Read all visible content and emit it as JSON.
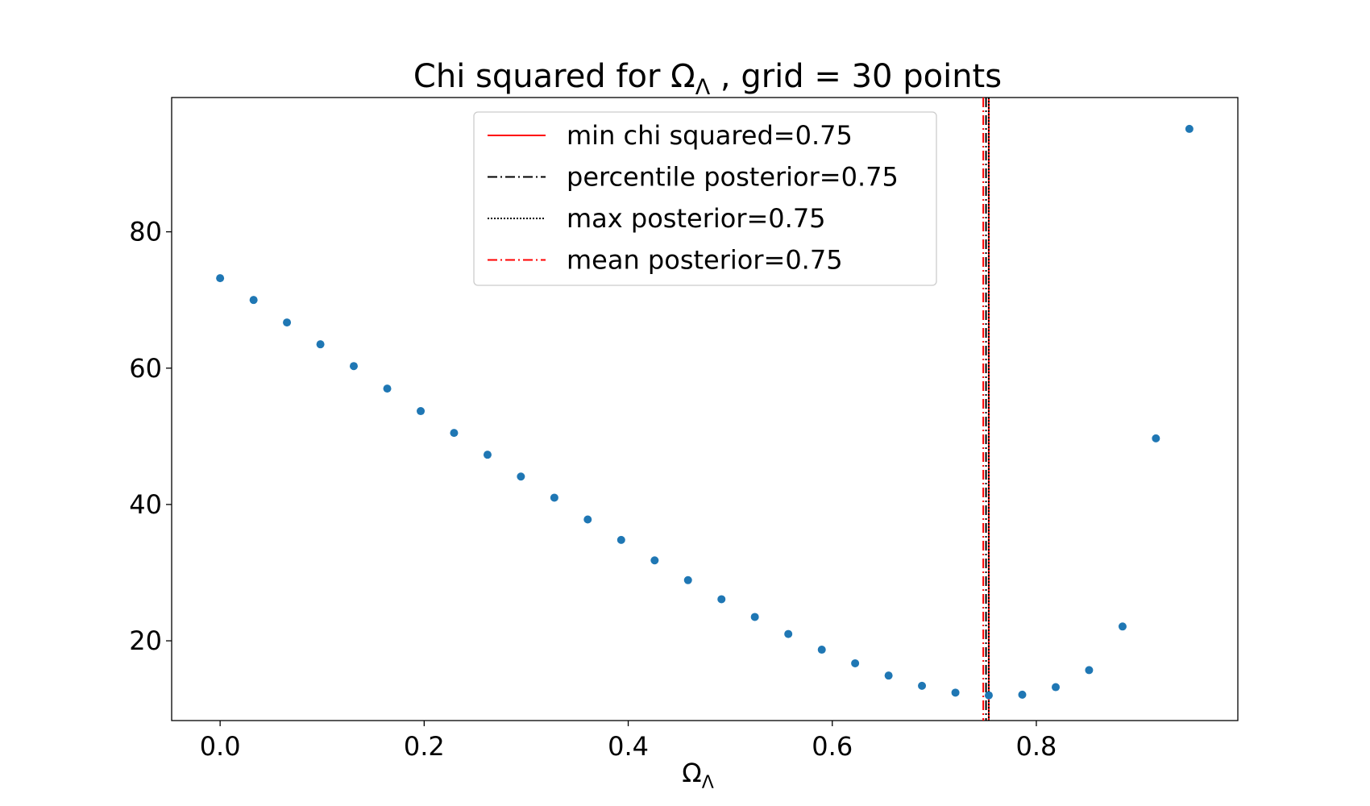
{
  "chart_data": {
    "type": "scatter",
    "title": "Chi squared for Ω",
    "title_subscript": "Λ",
    "title_suffix": " , grid = 30 points",
    "xlabel": "Ω",
    "xlabel_subscript": "Λ",
    "ylabel": "",
    "xlim": [
      -0.0475,
      0.9975
    ],
    "ylim": [
      8.3,
      99.7
    ],
    "xticks": [
      0.0,
      0.2,
      0.4,
      0.6,
      0.8
    ],
    "xtick_labels": [
      "0.0",
      "0.2",
      "0.4",
      "0.6",
      "0.8"
    ],
    "yticks": [
      20,
      40,
      60,
      80
    ],
    "ytick_labels": [
      "20",
      "40",
      "60",
      "80"
    ],
    "grid": false,
    "legend_position": "top-center",
    "point_color": "#1f77b4",
    "series": [
      {
        "x": [
          0.0,
          0.0328,
          0.0655,
          0.0983,
          0.131,
          0.1638,
          0.1966,
          0.2293,
          0.2621,
          0.2948,
          0.3276,
          0.3603,
          0.3931,
          0.4259,
          0.4586,
          0.4914,
          0.5241,
          0.5569,
          0.5897,
          0.6224,
          0.6552,
          0.6879,
          0.7207,
          0.7534,
          0.7862,
          0.819,
          0.8517,
          0.8845,
          0.9172,
          0.95
        ],
        "y": [
          73.2,
          70.0,
          66.7,
          63.5,
          60.3,
          57.0,
          53.7,
          50.5,
          47.3,
          44.1,
          41.0,
          37.8,
          34.8,
          31.8,
          28.9,
          26.1,
          23.5,
          21.0,
          18.7,
          16.7,
          14.9,
          13.4,
          12.4,
          12.0,
          12.1,
          13.2,
          15.7,
          22.1,
          49.7,
          95.1
        ]
      }
    ],
    "vlines": [
      {
        "label": "min chi squared=0.75",
        "x": 0.7534,
        "color": "#ff0000",
        "style": "solid"
      },
      {
        "label": "percentile posterior=0.75",
        "x": 0.7507,
        "color": "#000000",
        "style": "dashdot"
      },
      {
        "label": "max posterior=0.75",
        "x": 0.7534,
        "color": "#000000",
        "style": "dotted"
      },
      {
        "label": "mean posterior=0.75",
        "x": 0.748,
        "color": "#ff0000",
        "style": "dashdot"
      }
    ]
  }
}
